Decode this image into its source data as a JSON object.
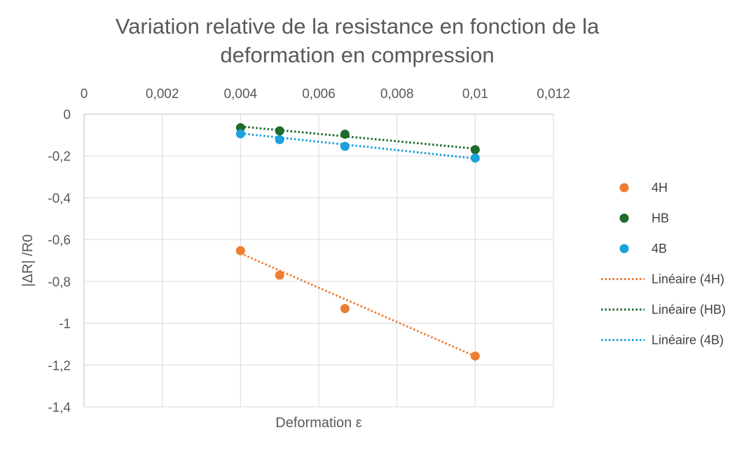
{
  "chart_data": {
    "type": "scatter",
    "title_lines": [
      "Variation relative de la resistance en fonction de la",
      "deformation en compression"
    ],
    "xlabel": "Deformation  ε",
    "ylabel": "|ΔR| /R0",
    "xlim": [
      0,
      0.012
    ],
    "ylim": [
      -1.4,
      0
    ],
    "x_axis_position": "top",
    "x_ticks": [
      "0",
      "0,002",
      "0,004",
      "0,006",
      "0,008",
      "0,01",
      "0,012"
    ],
    "y_ticks": [
      "0",
      "-0,2",
      "-0,4",
      "-0,6",
      "-0,8",
      "-1",
      "-1,2",
      "-1,4"
    ],
    "grid": true,
    "legend_position": "right",
    "series": [
      {
        "name": "4H",
        "color": "#ED7D31",
        "x": [
          0.004,
          0.005,
          0.00667,
          0.01
        ],
        "y": [
          -0.653,
          -0.77,
          -0.93,
          -1.157
        ]
      },
      {
        "name": "HB",
        "color": "#1E6B2A",
        "x": [
          0.004,
          0.005,
          0.00667,
          0.01
        ],
        "y": [
          -0.065,
          -0.08,
          -0.096,
          -0.17
        ]
      },
      {
        "name": "4B",
        "color": "#1BA1DB",
        "x": [
          0.004,
          0.005,
          0.00667,
          0.01
        ],
        "y": [
          -0.094,
          -0.122,
          -0.154,
          -0.21
        ]
      }
    ],
    "trendlines": [
      {
        "name": "Linéaire (4H)",
        "color": "#ED7D31",
        "style": "dotted",
        "x": [
          0.004,
          0.01
        ],
        "y": [
          -0.666,
          -1.158
        ]
      },
      {
        "name": "Linéaire (HB)",
        "color": "#1E6B2A",
        "style": "dotted",
        "x": [
          0.004,
          0.01
        ],
        "y": [
          -0.059,
          -0.165
        ]
      },
      {
        "name": "Linéaire (4B)",
        "color": "#1BA1DB",
        "style": "dotted",
        "x": [
          0.004,
          0.01
        ],
        "y": [
          -0.092,
          -0.212
        ]
      }
    ]
  }
}
